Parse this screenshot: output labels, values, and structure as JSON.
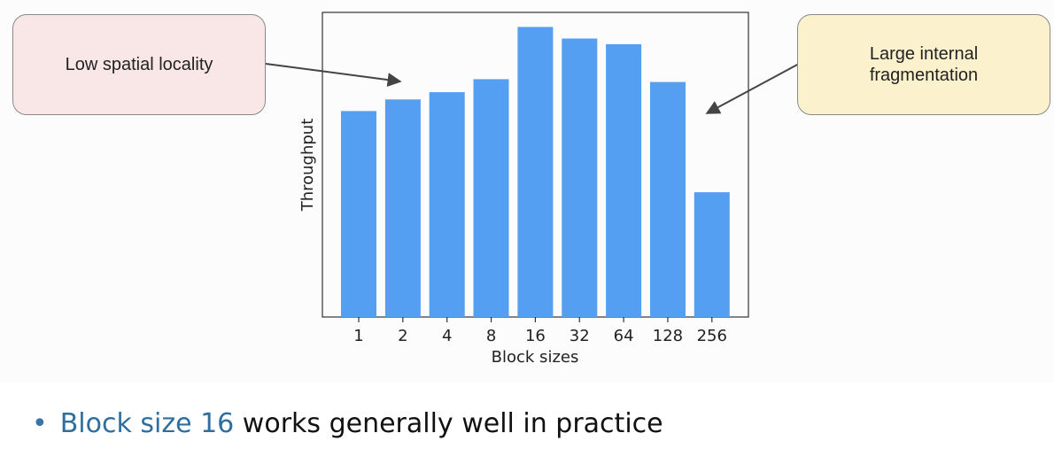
{
  "callouts": {
    "left": "Low spatial locality",
    "right": "Large internal fragmentation"
  },
  "bullet": {
    "marker": "•",
    "highlight": "Block size 16",
    "rest": " works generally well in practice"
  },
  "colors": {
    "bar": "#559ff2",
    "highlight_text": "#2f6f9f",
    "callout_left_bg": "#f9e6e7",
    "callout_right_bg": "#fbf1cc"
  },
  "chart_data": {
    "type": "bar",
    "categories": [
      "1",
      "2",
      "4",
      "8",
      "16",
      "32",
      "64",
      "128",
      "256"
    ],
    "values": [
      71,
      75,
      77.5,
      82,
      100,
      96,
      94,
      81,
      43
    ],
    "xlabel": "Block sizes",
    "ylabel": "Throughput",
    "ylim": [
      0,
      105
    ],
    "yticks_shown": false,
    "grid": false,
    "legend": "none"
  }
}
